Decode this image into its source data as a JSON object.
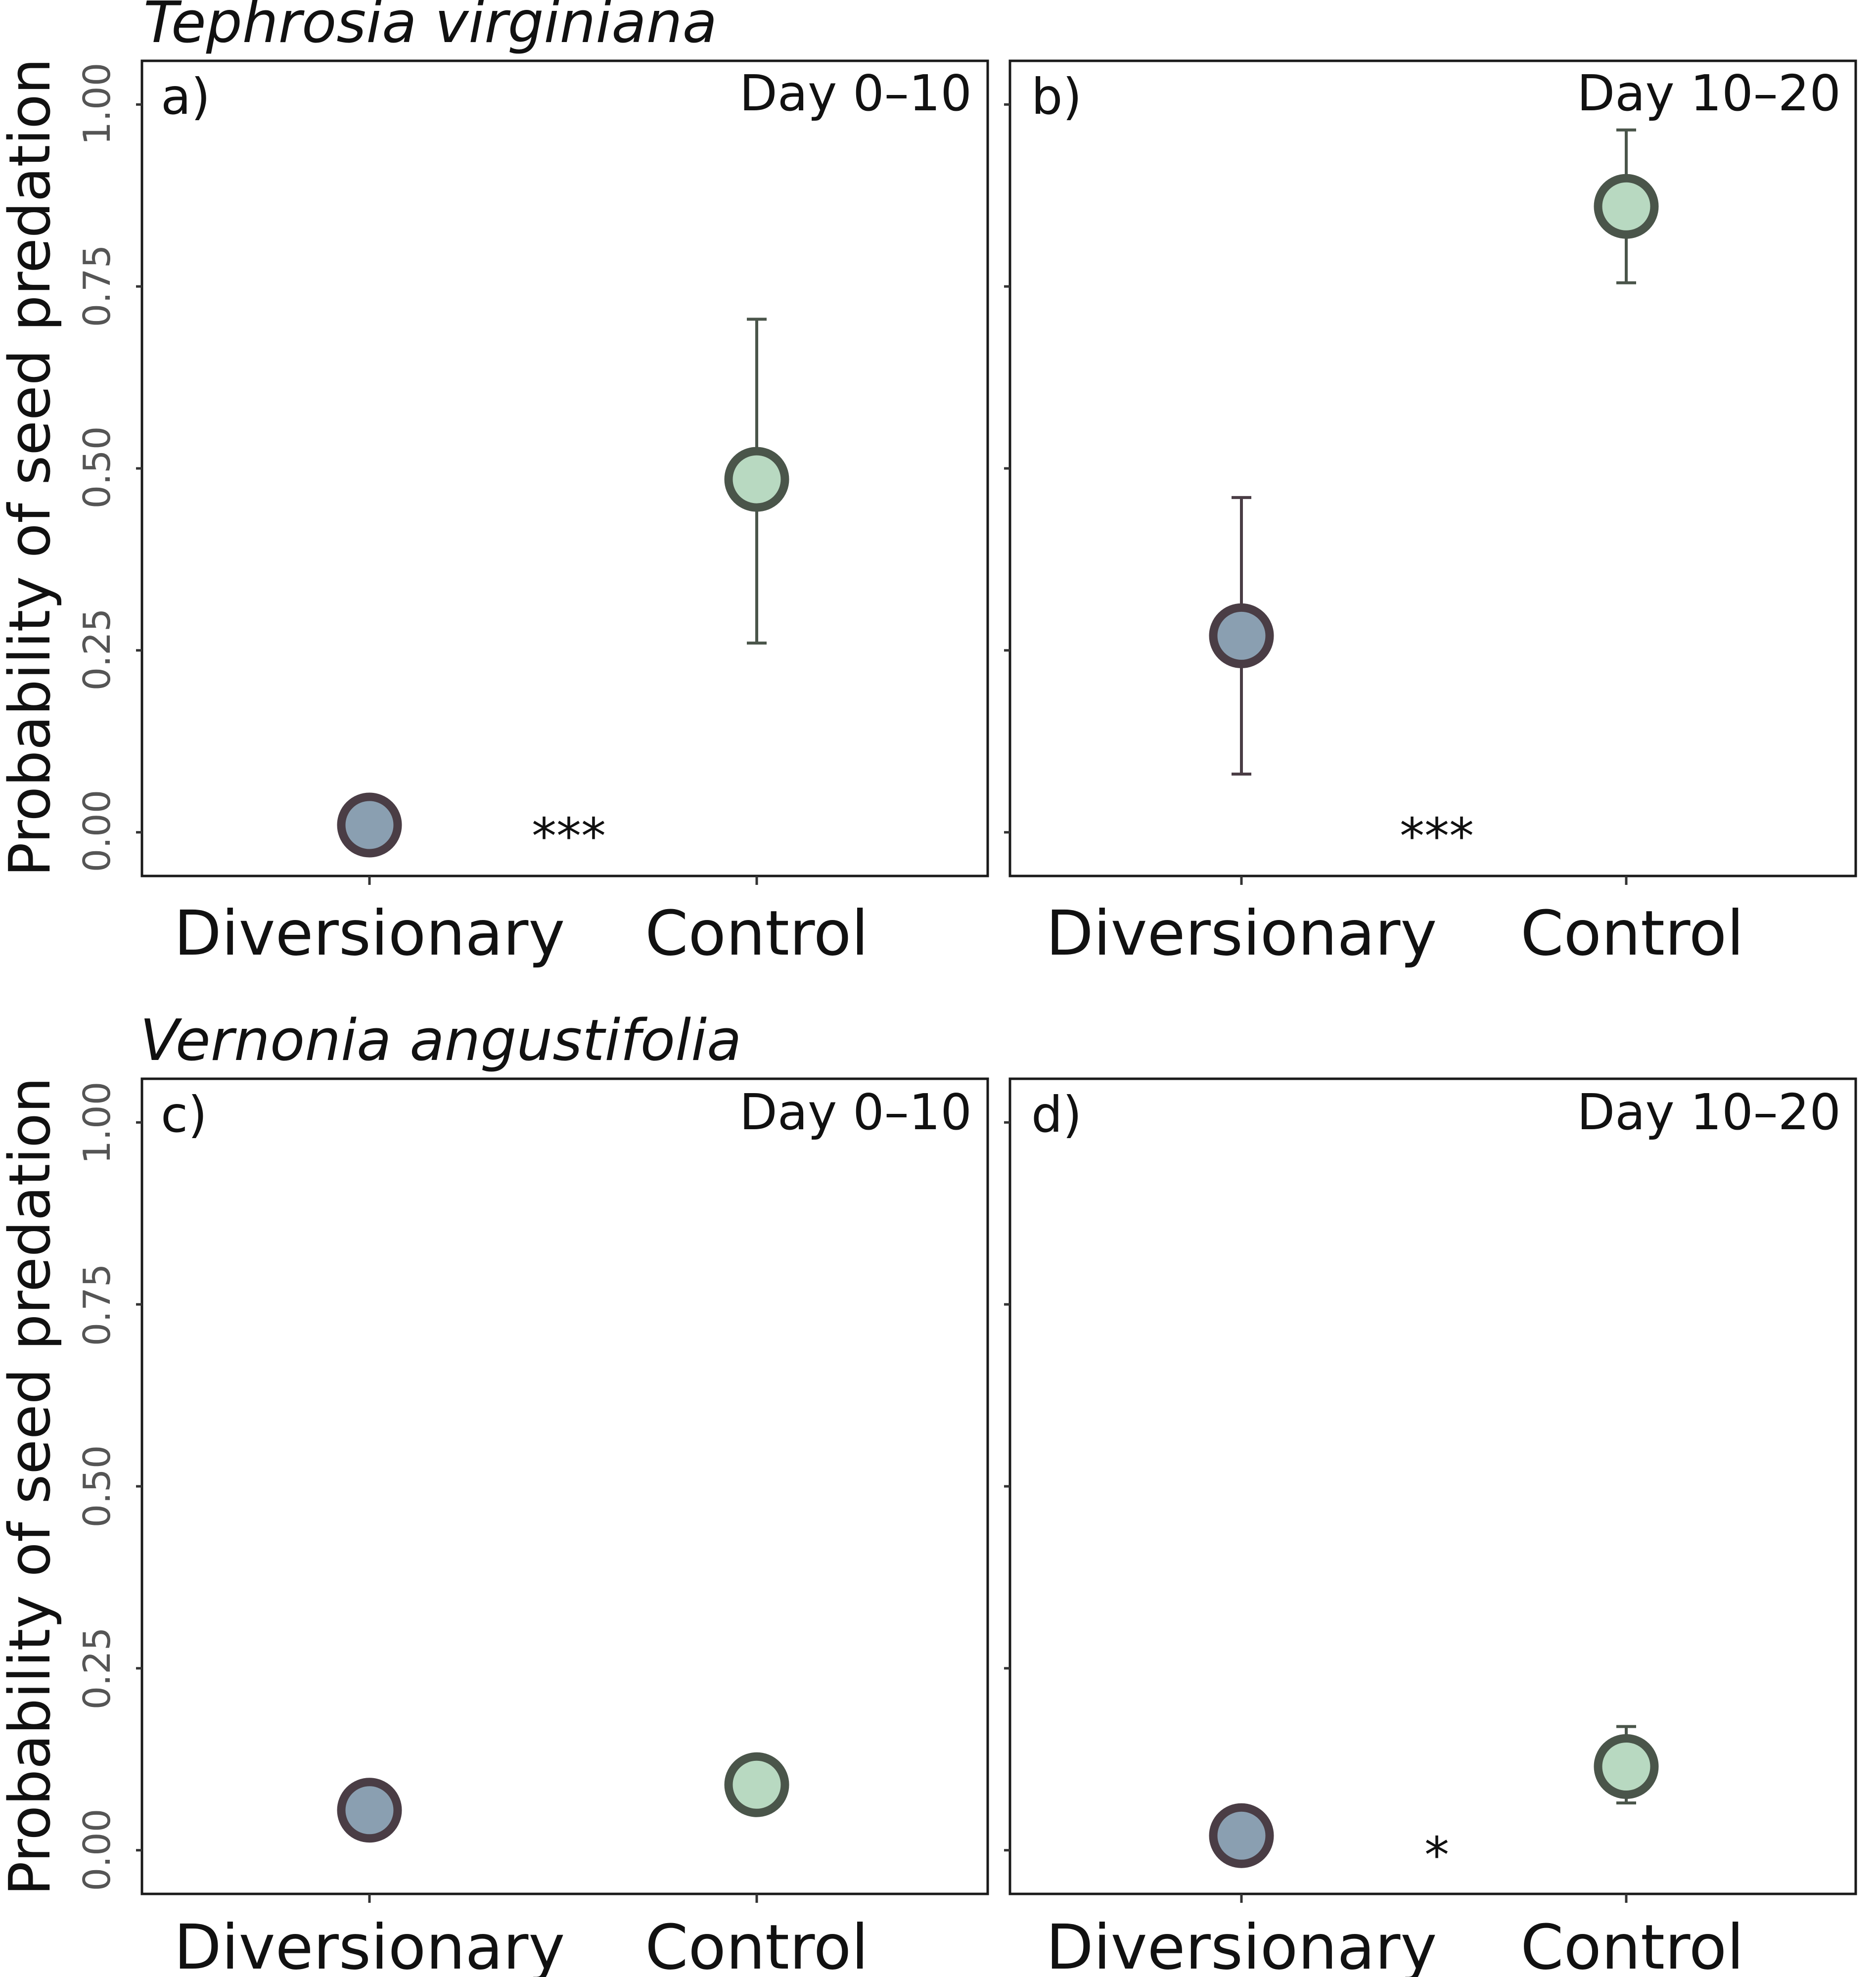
{
  "chart_data": [
    {
      "type": "scatter",
      "panel_label": "a)",
      "period": "Day 0–10",
      "species": "Tephrosia virginiana",
      "ylabel": "Probability of seed predation",
      "categories": [
        "Diversionary",
        "Control"
      ],
      "ylim": [
        -0.06,
        1.06
      ],
      "yticks": [
        "0.00",
        "0.25",
        "0.50",
        "0.75",
        "1.00"
      ],
      "points": [
        {
          "category": "Diversionary",
          "y": 0.01,
          "lower": 0.01,
          "upper": 0.01
        },
        {
          "category": "Control",
          "y": 0.485,
          "lower": 0.26,
          "upper": 0.705
        }
      ],
      "significance": "***"
    },
    {
      "type": "scatter",
      "panel_label": "b)",
      "period": "Day 10–20",
      "categories": [
        "Diversionary",
        "Control"
      ],
      "ylim": [
        -0.06,
        1.06
      ],
      "points": [
        {
          "category": "Diversionary",
          "y": 0.27,
          "lower": 0.08,
          "upper": 0.46
        },
        {
          "category": "Control",
          "y": 0.86,
          "lower": 0.755,
          "upper": 0.965
        }
      ],
      "significance": "***"
    },
    {
      "type": "scatter",
      "panel_label": "c)",
      "period": "Day 0–10",
      "species": "Vernonia angustifolia",
      "ylabel": "Probability of seed predation",
      "categories": [
        "Diversionary",
        "Control"
      ],
      "ylim": [
        -0.06,
        1.06
      ],
      "yticks": [
        "0.00",
        "0.25",
        "0.50",
        "0.75",
        "1.00"
      ],
      "points": [
        {
          "category": "Diversionary",
          "y": 0.055,
          "lower": 0.055,
          "upper": 0.055
        },
        {
          "category": "Control",
          "y": 0.09,
          "lower": 0.05,
          "upper": 0.13
        }
      ],
      "significance": ""
    },
    {
      "type": "scatter",
      "panel_label": "d)",
      "period": "Day 10–20",
      "categories": [
        "Diversionary",
        "Control"
      ],
      "ylim": [
        -0.06,
        1.06
      ],
      "points": [
        {
          "category": "Diversionary",
          "y": 0.02,
          "lower": 0.02,
          "upper": 0.02
        },
        {
          "category": "Control",
          "y": 0.115,
          "lower": 0.065,
          "upper": 0.17
        }
      ],
      "significance": "*"
    }
  ],
  "colors": {
    "diversionary_fill": "#8a9fb1",
    "diversionary_stroke": "#4a3d45",
    "control_fill": "#b8d9c1",
    "control_stroke": "#4a554a"
  }
}
